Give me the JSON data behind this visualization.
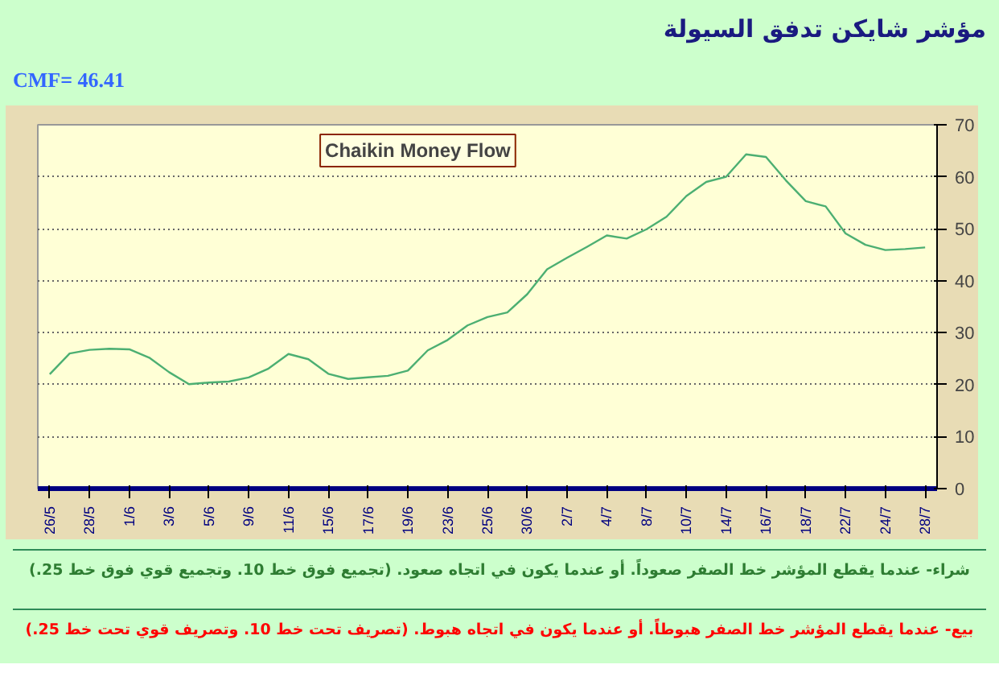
{
  "chart_data": {
    "type": "line",
    "title": "مؤشر شايكن تدفق السيولة",
    "subtitle": "CMF= 46.41",
    "annotations": [
      "Chaikin Money Flow",
      "شراء- عندما يقطع المؤشر خط الصفر صعوداً. أو عندما يكون في اتجاه صعود. (تجميع فوق خط 10. وتجميع قوي فوق خط 25.)",
      "بيع- عندما يقطع المؤشر خط الصفر هبوطاً.  أو عندما يكون في اتجاه هبوط. (تصريف تحت خط 10. وتصريف قوي تحت خط 25.)"
    ],
    "categories": [
      "26/5",
      null,
      "28/5",
      null,
      "1/6",
      null,
      "3/6",
      null,
      "5/6",
      null,
      "9/6",
      null,
      "11/6",
      null,
      "15/6",
      null,
      "17/6",
      null,
      "19/6",
      null,
      "23/6",
      null,
      "25/6",
      null,
      "30/6",
      null,
      "2/7",
      null,
      "4/7",
      null,
      "8/7",
      null,
      "10/7",
      null,
      "14/7",
      null,
      "16/7",
      null,
      "18/7",
      null,
      "22/7",
      null,
      "24/7",
      null,
      "28/7"
    ],
    "series": [
      {
        "color": "#4caf72",
        "values": [
          22,
          26,
          26.7,
          26.9,
          26.8,
          25.2,
          22.4,
          20.1,
          20.4,
          20.6,
          21.4,
          23.1,
          25.9,
          24.9,
          22.1,
          21.1,
          21.4,
          21.7,
          22.7,
          26.6,
          28.6,
          31.4,
          33,
          33.9,
          37.4,
          42.2,
          44.4,
          46.5,
          48.7,
          48.1,
          49.9,
          52.3,
          56.3,
          59,
          60,
          64.3,
          63.8,
          59.3,
          55.3,
          54.3,
          49.1,
          46.9,
          45.9,
          46.1,
          46.4
        ]
      }
    ],
    "ylim": [
      0,
      70
    ],
    "yticks": [
      0,
      10,
      20,
      30,
      40,
      50,
      60,
      70
    ],
    "grid": "y"
  }
}
